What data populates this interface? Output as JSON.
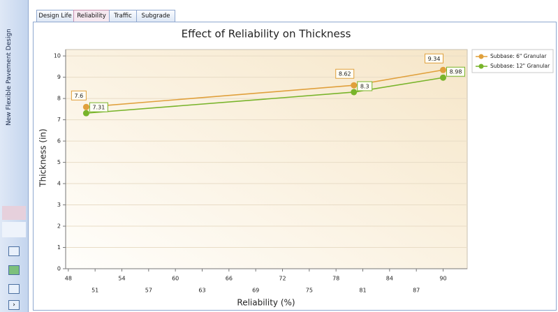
{
  "sidebar_title": "New Flexible Pavement Design",
  "tabs": [
    "Design Life",
    "Reliability",
    "Traffic",
    "Subgrade"
  ],
  "chart_data": {
    "type": "line",
    "title": "Effect of Reliability on Thickness",
    "x_label": "Reliability (%)",
    "y_label": "Thickness (in)",
    "x": [
      50,
      80,
      90
    ],
    "series": [
      {
        "name": "Subbase: 6\" Granular",
        "color": "#e0a03c",
        "values": [
          7.6,
          8.62,
          9.34
        ]
      },
      {
        "name": "Subbase: 12\" Granular",
        "color": "#78b42a",
        "values": [
          7.31,
          8.3,
          8.98
        ]
      }
    ],
    "xlim": [
      47.7,
      92.7
    ],
    "xticks": [
      48,
      51,
      54,
      57,
      60,
      63,
      66,
      69,
      72,
      75,
      78,
      81,
      84,
      87,
      90
    ],
    "ylim": [
      0,
      10.3
    ],
    "yticks": [
      0,
      1,
      2,
      3,
      4,
      5,
      6,
      7,
      8,
      9,
      10
    ],
    "grid": true,
    "legend": "right"
  }
}
